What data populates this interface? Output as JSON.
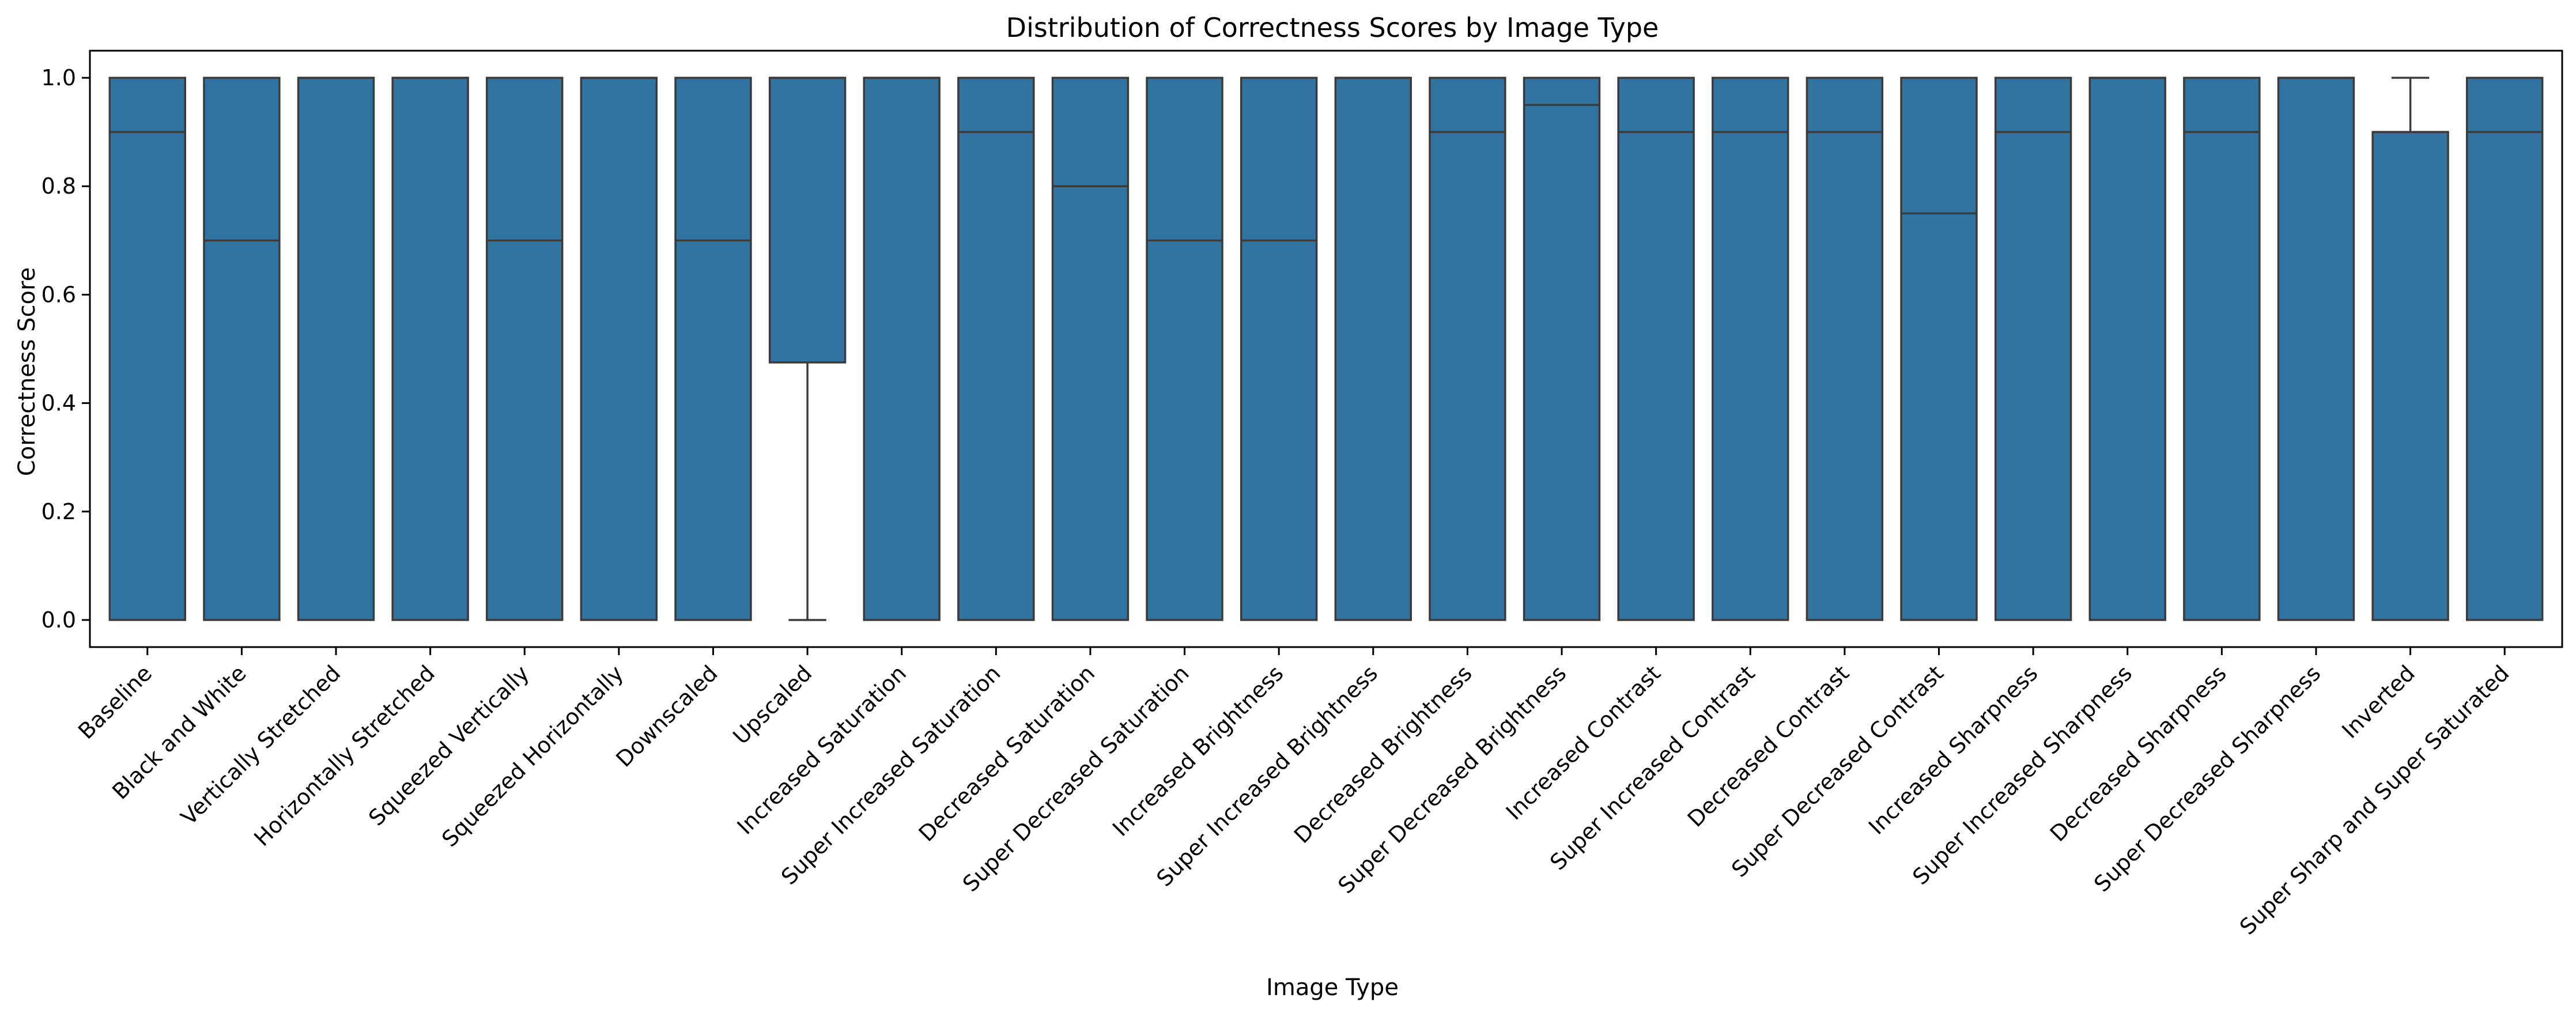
{
  "chart_data": {
    "type": "box",
    "title": "Distribution of Correctness Scores by Image Type",
    "xlabel": "Image Type",
    "ylabel": "Correctness Score",
    "ylim": [
      -0.05,
      1.05
    ],
    "yticks": [
      0.0,
      0.2,
      0.4,
      0.6,
      0.8,
      1.0
    ],
    "ytick_labels": [
      "0.0",
      "0.2",
      "0.4",
      "0.6",
      "0.8",
      "1.0"
    ],
    "grid": false,
    "legend": "none",
    "box_color": "#3274a1",
    "edge_color": "#3b3b3b",
    "categories": [
      "Baseline",
      "Black and White",
      "Vertically Stretched",
      "Horizontally Stretched",
      "Squeezed Vertically",
      "Squeezed Horizontally",
      "Downscaled",
      "Upscaled",
      "Increased Saturation",
      "Super Increased Saturation",
      "Decreased Saturation",
      "Super Decreased Saturation",
      "Increased Brightness",
      "Super Increased Brightness",
      "Decreased Brightness",
      "Super Decreased Brightness",
      "Increased Contrast",
      "Super Increased Contrast",
      "Decreased Contrast",
      "Super Decreased Contrast",
      "Increased Sharpness",
      "Super Increased Sharpness",
      "Decreased Sharpness",
      "Super Decreased Sharpness",
      "Inverted",
      "Super Sharp and Super Saturated"
    ],
    "boxes": [
      {
        "whislo": 0.0,
        "q1": 0.0,
        "med": 0.9,
        "q3": 1.0,
        "whishi": 1.0
      },
      {
        "whislo": 0.0,
        "q1": 0.0,
        "med": 0.7,
        "q3": 1.0,
        "whishi": 1.0
      },
      {
        "whislo": 0.0,
        "q1": 0.0,
        "med": 1.0,
        "q3": 1.0,
        "whishi": 1.0
      },
      {
        "whislo": 0.0,
        "q1": 0.0,
        "med": 1.0,
        "q3": 1.0,
        "whishi": 1.0
      },
      {
        "whislo": 0.0,
        "q1": 0.0,
        "med": 0.7,
        "q3": 1.0,
        "whishi": 1.0
      },
      {
        "whislo": 0.0,
        "q1": 0.0,
        "med": 1.0,
        "q3": 1.0,
        "whishi": 1.0
      },
      {
        "whislo": 0.0,
        "q1": 0.0,
        "med": 0.7,
        "q3": 1.0,
        "whishi": 1.0
      },
      {
        "whislo": 0.0,
        "q1": 0.475,
        "med": 1.0,
        "q3": 1.0,
        "whishi": 1.0
      },
      {
        "whislo": 0.0,
        "q1": 0.0,
        "med": 1.0,
        "q3": 1.0,
        "whishi": 1.0
      },
      {
        "whislo": 0.0,
        "q1": 0.0,
        "med": 0.9,
        "q3": 1.0,
        "whishi": 1.0
      },
      {
        "whislo": 0.0,
        "q1": 0.0,
        "med": 0.8,
        "q3": 1.0,
        "whishi": 1.0
      },
      {
        "whislo": 0.0,
        "q1": 0.0,
        "med": 0.7,
        "q3": 1.0,
        "whishi": 1.0
      },
      {
        "whislo": 0.0,
        "q1": 0.0,
        "med": 0.7,
        "q3": 1.0,
        "whishi": 1.0
      },
      {
        "whislo": 0.0,
        "q1": 0.0,
        "med": 1.0,
        "q3": 1.0,
        "whishi": 1.0
      },
      {
        "whislo": 0.0,
        "q1": 0.0,
        "med": 0.9,
        "q3": 1.0,
        "whishi": 1.0
      },
      {
        "whislo": 0.0,
        "q1": 0.0,
        "med": 0.95,
        "q3": 1.0,
        "whishi": 1.0
      },
      {
        "whislo": 0.0,
        "q1": 0.0,
        "med": 0.9,
        "q3": 1.0,
        "whishi": 1.0
      },
      {
        "whislo": 0.0,
        "q1": 0.0,
        "med": 0.9,
        "q3": 1.0,
        "whishi": 1.0
      },
      {
        "whislo": 0.0,
        "q1": 0.0,
        "med": 0.9,
        "q3": 1.0,
        "whishi": 1.0
      },
      {
        "whislo": 0.0,
        "q1": 0.0,
        "med": 0.75,
        "q3": 1.0,
        "whishi": 1.0
      },
      {
        "whislo": 0.0,
        "q1": 0.0,
        "med": 0.9,
        "q3": 1.0,
        "whishi": 1.0
      },
      {
        "whislo": 0.0,
        "q1": 0.0,
        "med": 1.0,
        "q3": 1.0,
        "whishi": 1.0
      },
      {
        "whislo": 0.0,
        "q1": 0.0,
        "med": 0.9,
        "q3": 1.0,
        "whishi": 1.0
      },
      {
        "whislo": 0.0,
        "q1": 0.0,
        "med": 1.0,
        "q3": 1.0,
        "whishi": 1.0
      },
      {
        "whislo": 0.0,
        "q1": 0.0,
        "med": 0.9,
        "q3": 0.9,
        "whishi": 1.0
      },
      {
        "whislo": 0.0,
        "q1": 0.0,
        "med": 0.9,
        "q3": 1.0,
        "whishi": 1.0
      }
    ]
  }
}
